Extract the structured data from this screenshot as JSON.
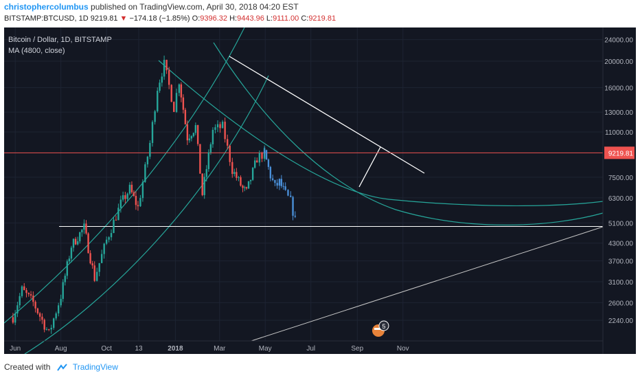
{
  "header": {
    "author": "christophercolumbus",
    "published": "published on TradingView.com, April 30, 2018 04:20 EST",
    "symbol": "BITSTAMP:BTCUSD, 1D",
    "last": "9219.81",
    "change_arrow": "▼",
    "change": "−174.18 (−1.85%)",
    "o_label": "O:",
    "o_value": "9396.32",
    "h_label": "H:",
    "h_value": "9443.96",
    "l_label": "L:",
    "l_value": "9111.00",
    "c_label": "C:",
    "c_value": "9219.81"
  },
  "legend": {
    "title": "Bitcoin / Dollar, 1D, BITSTAMP",
    "indicator": "MA (4800, close)"
  },
  "footer": {
    "created_with": "Created with",
    "brand": "TradingView"
  },
  "colors": {
    "background": "#131722",
    "grid": "#1e2433",
    "up": "#26a69a",
    "down": "#ef5350",
    "projection": "#4a90d9",
    "arc": "#26a69a",
    "trendline": "#ffffff",
    "price_line": "#ef5350"
  },
  "chart_data": {
    "type": "candlestick",
    "title": "Bitcoin / Dollar, 1D, BITSTAMP",
    "y_scale": "log",
    "ylim": [
      2000,
      25000
    ],
    "y_ticks": [
      "24000.00",
      "20000.00",
      "16000.00",
      "13000.00",
      "11000.00",
      "7500.00",
      "6300.00",
      "5100.00",
      "4300.00",
      "3700.00",
      "3100.00",
      "2600.00",
      "2240.00"
    ],
    "x_ticks": [
      "Jun",
      "Aug",
      "Oct",
      "13",
      "2018",
      "Mar",
      "May",
      "Jul",
      "Sep",
      "Nov"
    ],
    "current_price_label": "9219.81",
    "current_price": 9219.81,
    "price_path": [
      [
        "2017-05-29",
        2300
      ],
      [
        "2017-06-10",
        2900
      ],
      [
        "2017-06-25",
        2600
      ],
      [
        "2017-07-16",
        2000
      ],
      [
        "2017-08-01",
        2750
      ],
      [
        "2017-08-15",
        4200
      ],
      [
        "2017-09-01",
        4900
      ],
      [
        "2017-09-15",
        3200
      ],
      [
        "2017-10-01",
        4400
      ],
      [
        "2017-10-20",
        6000
      ],
      [
        "2017-11-01",
        6800
      ],
      [
        "2017-11-12",
        5800
      ],
      [
        "2017-11-28",
        10000
      ],
      [
        "2017-12-08",
        16000
      ],
      [
        "2017-12-17",
        19500
      ],
      [
        "2017-12-30",
        13500
      ],
      [
        "2018-01-06",
        17000
      ],
      [
        "2018-01-17",
        10500
      ],
      [
        "2018-01-28",
        11500
      ],
      [
        "2018-02-06",
        6500
      ],
      [
        "2018-02-20",
        11200
      ],
      [
        "2018-03-05",
        11500
      ],
      [
        "2018-03-18",
        8000
      ],
      [
        "2018-04-01",
        6800
      ],
      [
        "2018-04-06",
        6600
      ],
      [
        "2018-04-20",
        8800
      ],
      [
        "2018-04-30",
        9219.81
      ]
    ],
    "projection_path": [
      [
        "2018-04-30",
        9200
      ],
      [
        "2018-05-08",
        7600
      ],
      [
        "2018-05-14",
        6900
      ],
      [
        "2018-05-20",
        7200
      ],
      [
        "2018-05-28",
        6500
      ],
      [
        "2018-06-04",
        6100
      ],
      [
        "2018-06-10",
        5200
      ]
    ],
    "annotations": {
      "horizontal_support": 4950,
      "price_line": 9219.81,
      "event_badge": "5"
    }
  }
}
